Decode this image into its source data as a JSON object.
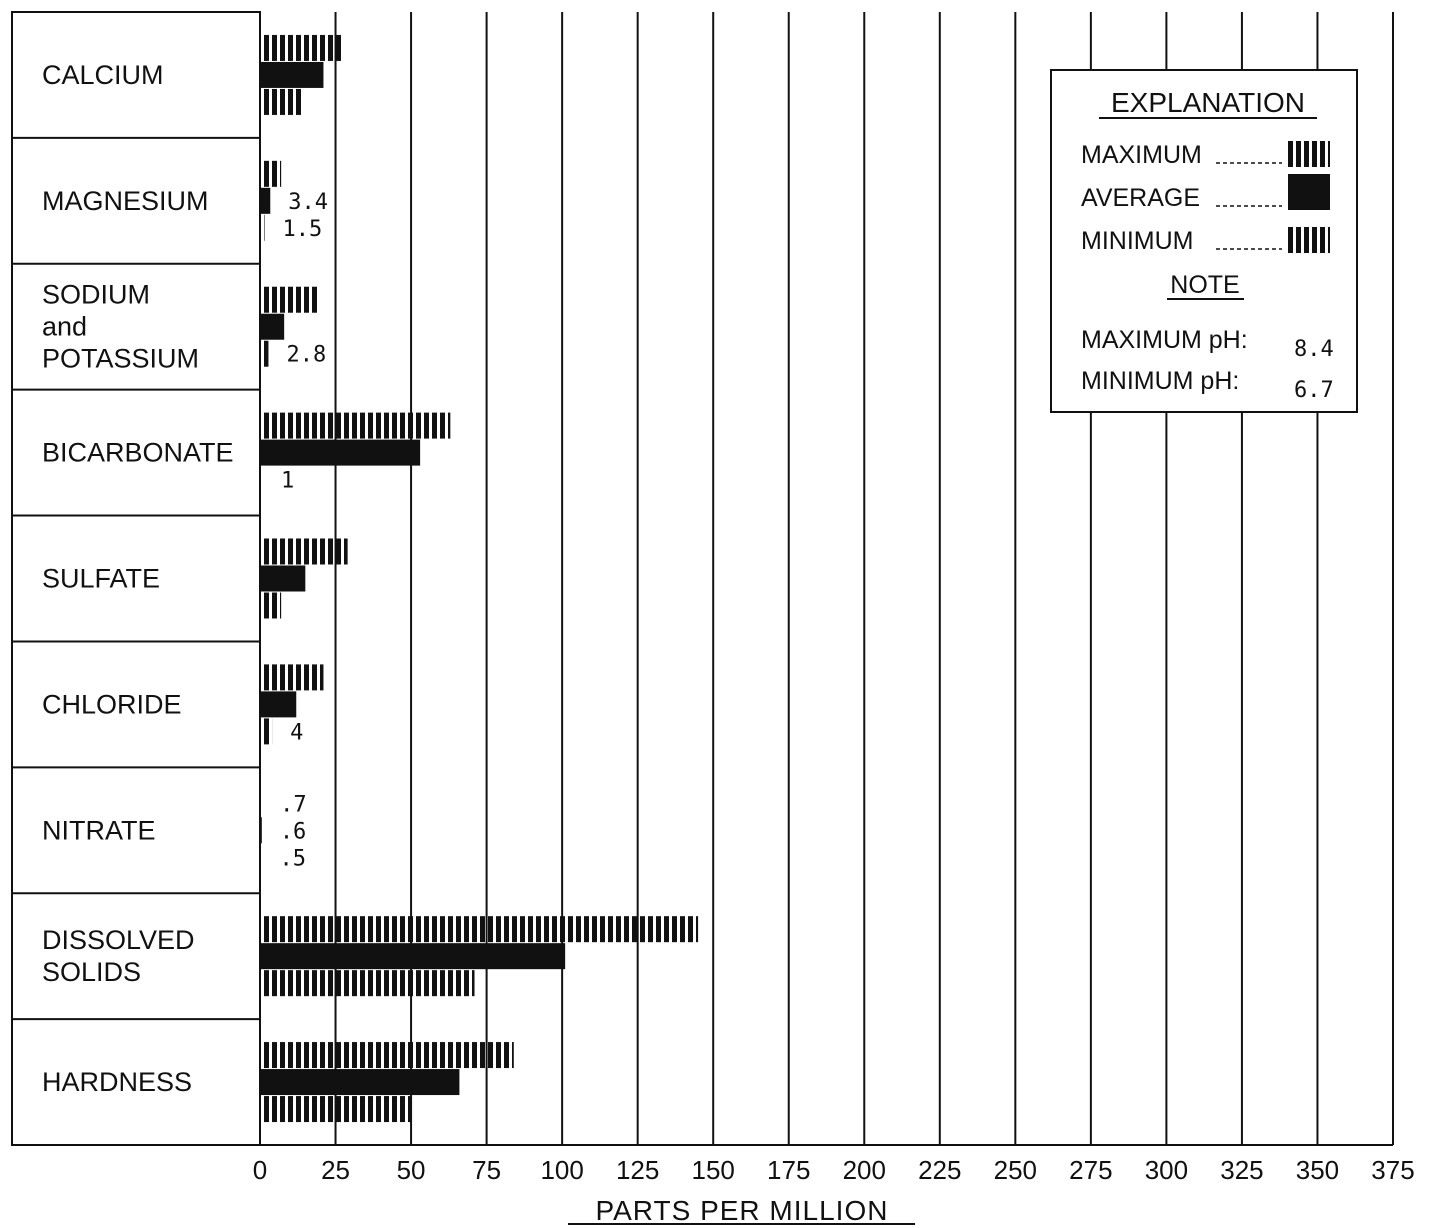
{
  "chart_data": {
    "type": "bar",
    "orientation": "horizontal",
    "xlabel": "PARTS PER MILLION",
    "xlim": [
      0,
      375
    ],
    "x_ticks": [
      "0",
      "25",
      "50",
      "75",
      "100",
      "125",
      "150",
      "175",
      "200",
      "225",
      "250",
      "275",
      "300",
      "325",
      "350",
      "375"
    ],
    "grid": true,
    "categories": [
      {
        "lines": [
          "CALCIUM"
        ]
      },
      {
        "lines": [
          "MAGNESIUM"
        ]
      },
      {
        "lines": [
          "SODIUM",
          "and",
          "POTASSIUM"
        ]
      },
      {
        "lines": [
          "BICARBONATE"
        ]
      },
      {
        "lines": [
          "SULFATE"
        ]
      },
      {
        "lines": [
          "CHLORIDE"
        ]
      },
      {
        "lines": [
          "NITRATE"
        ]
      },
      {
        "lines": [
          "DISSOLVED",
          "SOLIDS"
        ]
      },
      {
        "lines": [
          "HARDNESS"
        ]
      }
    ],
    "series": [
      {
        "name": "MAXIMUM",
        "style": "hatched",
        "values": [
          27,
          7,
          19,
          63,
          29,
          21,
          0.7,
          145,
          84
        ]
      },
      {
        "name": "AVERAGE",
        "style": "solid",
        "values": [
          21,
          3.4,
          8,
          53,
          15,
          12,
          0.6,
          101,
          66
        ]
      },
      {
        "name": "MINIMUM",
        "style": "hatched",
        "values": [
          14,
          1.5,
          2.8,
          1,
          7,
          4,
          0.5,
          71,
          50
        ]
      }
    ],
    "value_labels": [
      {
        "category": 1,
        "series": 1,
        "text": "3.4"
      },
      {
        "category": 1,
        "series": 2,
        "text": "1.5"
      },
      {
        "category": 2,
        "series": 2,
        "text": "2.8"
      },
      {
        "category": 3,
        "series": 2,
        "text": "1"
      },
      {
        "category": 5,
        "series": 2,
        "text": "4"
      },
      {
        "category": 6,
        "series": 0,
        "text": ".7"
      },
      {
        "category": 6,
        "series": 1,
        "text": ".6"
      },
      {
        "category": 6,
        "series": 2,
        "text": ".5"
      }
    ],
    "legend": {
      "placement": "top-right",
      "title": "EXPLANATION",
      "note_title": "NOTE",
      "notes": [
        {
          "label": "MAXIMUM pH:",
          "value": "8.4"
        },
        {
          "label": "MINIMUM pH:",
          "value": "6.7"
        }
      ]
    }
  }
}
